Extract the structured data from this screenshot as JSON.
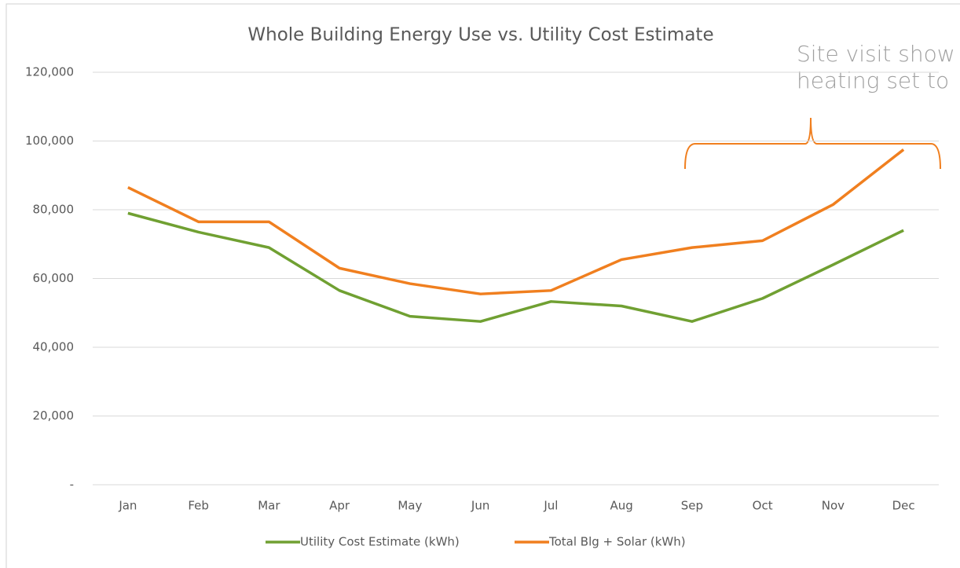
{
  "chart_data": {
    "type": "line",
    "title": "Whole Building Energy Use vs. Utility Cost Estimate",
    "annotation": [
      "Site visit show",
      "heating set to"
    ],
    "categories": [
      "Jan",
      "Feb",
      "Mar",
      "Apr",
      "May",
      "Jun",
      "Jul",
      "Aug",
      "Sep",
      "Oct",
      "Nov",
      "Dec"
    ],
    "series": [
      {
        "name": "Utility Cost Estimate (kWh)",
        "color": "#70a032",
        "values": [
          79000,
          73500,
          69000,
          56500,
          49000,
          47500,
          53300,
          52000,
          47500,
          54200,
          64000,
          74000
        ]
      },
      {
        "name": "Total Blg + Solar (kWh)",
        "color": "#f07f1f",
        "values": [
          86500,
          76500,
          76500,
          63000,
          58500,
          55500,
          56500,
          65500,
          69000,
          71000,
          81500,
          97500
        ]
      }
    ],
    "ylim": [
      0,
      120000
    ],
    "yticks": [
      {
        "value": 0,
        "label": "-"
      },
      {
        "value": 20000,
        "label": "20,000"
      },
      {
        "value": 40000,
        "label": "40,000"
      },
      {
        "value": 60000,
        "label": "60,000"
      },
      {
        "value": 80000,
        "label": "80,000"
      },
      {
        "value": 100000,
        "label": "100,000"
      },
      {
        "value": 120000,
        "label": "120,000"
      }
    ],
    "grid": true
  }
}
